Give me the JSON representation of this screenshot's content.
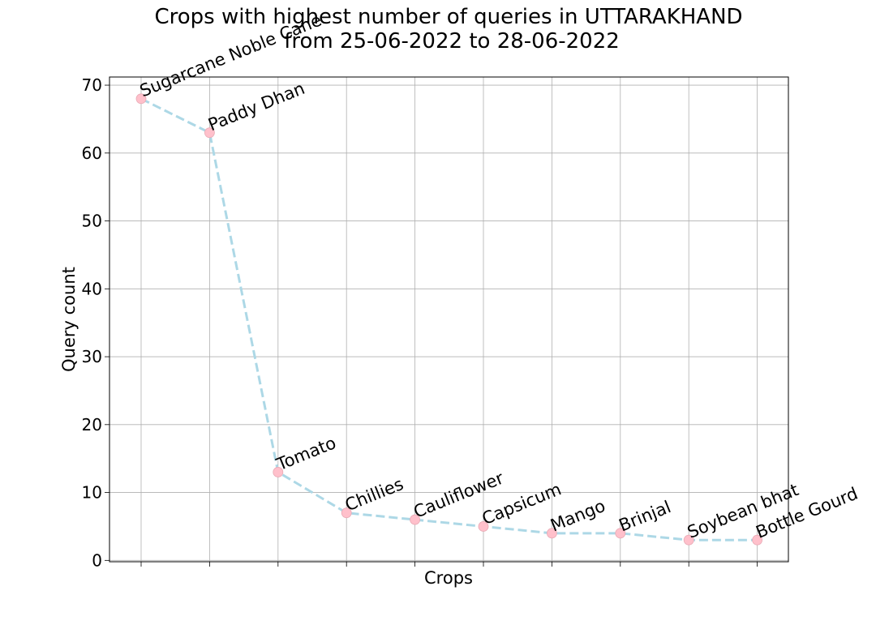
{
  "chart_data": {
    "type": "line",
    "title_lines": [
      "Crops with highest number of queries in UTTARAKHAND",
      "from 25-06-2022 to 28-06-2022"
    ],
    "xlabel": "Crops",
    "ylabel": "Query count",
    "categories": [
      "Sugarcane Noble Cane",
      "Paddy Dhan",
      "Tomato",
      "Chillies",
      "Cauliflower",
      "Capsicum",
      "Mango",
      "Brinjal",
      "Soybean bhat",
      "Bottle Gourd"
    ],
    "values": [
      68,
      63,
      13,
      7,
      6,
      5,
      4,
      4,
      3,
      3
    ],
    "ylim": [
      -0.2,
      71.2
    ],
    "yticks": [
      0,
      10,
      20,
      30,
      40,
      50,
      60,
      70
    ],
    "grid": true,
    "line_style": "dashed",
    "line_color": "#add8e6",
    "marker_color": "#ffc0cb"
  }
}
